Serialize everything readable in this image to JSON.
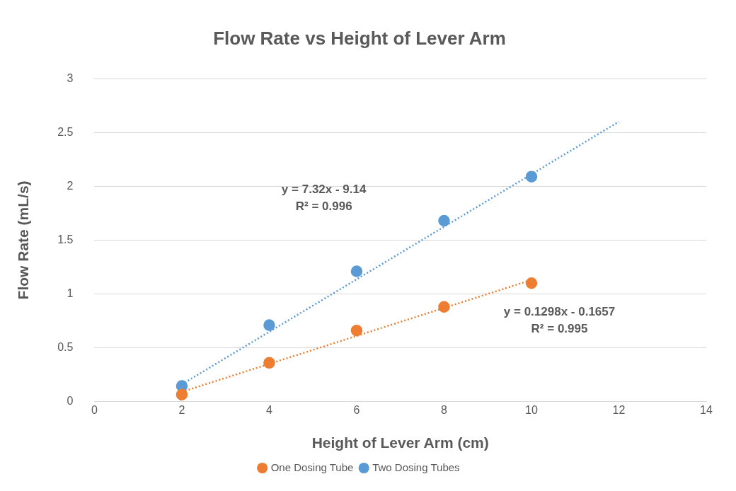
{
  "chart_data": {
    "type": "scatter",
    "title": "Flow Rate vs Height of Lever Arm",
    "xlabel": "Height of Lever Arm (cm)",
    "ylabel": "Flow Rate (mL/s)",
    "xlim": [
      0,
      14
    ],
    "xticks": [
      0,
      2,
      4,
      6,
      8,
      10,
      12,
      14
    ],
    "ylim": [
      0,
      3
    ],
    "yticks": [
      0,
      0.5,
      1,
      1.5,
      2,
      2.5,
      3
    ],
    "grid": "y",
    "legend": "bottom",
    "marker": "circle",
    "series": [
      {
        "name": "One Dosing Tube",
        "color": "#ed7d31",
        "x": [
          2,
          4,
          6,
          8,
          10
        ],
        "values": [
          0.065,
          0.36,
          0.66,
          0.88,
          1.1
        ]
      },
      {
        "name": "Two Dosing Tubes",
        "color": "#5b9bd5",
        "x": [
          2,
          4,
          6,
          8,
          10
        ],
        "values": [
          0.145,
          0.71,
          1.21,
          1.68,
          2.09
        ]
      },
      {
        "type": "line",
        "color": "#ed7d31",
        "x": [
          2,
          10
        ],
        "values": [
          0.09,
          1.13
        ],
        "line_style": "dotted",
        "marker": "none"
      },
      {
        "type": "line",
        "color": "#5b9bd5",
        "x": [
          2,
          12
        ],
        "values": [
          0.16,
          2.6
        ],
        "line_style": "dotted",
        "marker": "none"
      }
    ],
    "annotations": [
      "y = 7.32x - 9.14\nR² = 0.996",
      "y = 0.1298x - 0.1657\nR² = 0.995"
    ]
  }
}
